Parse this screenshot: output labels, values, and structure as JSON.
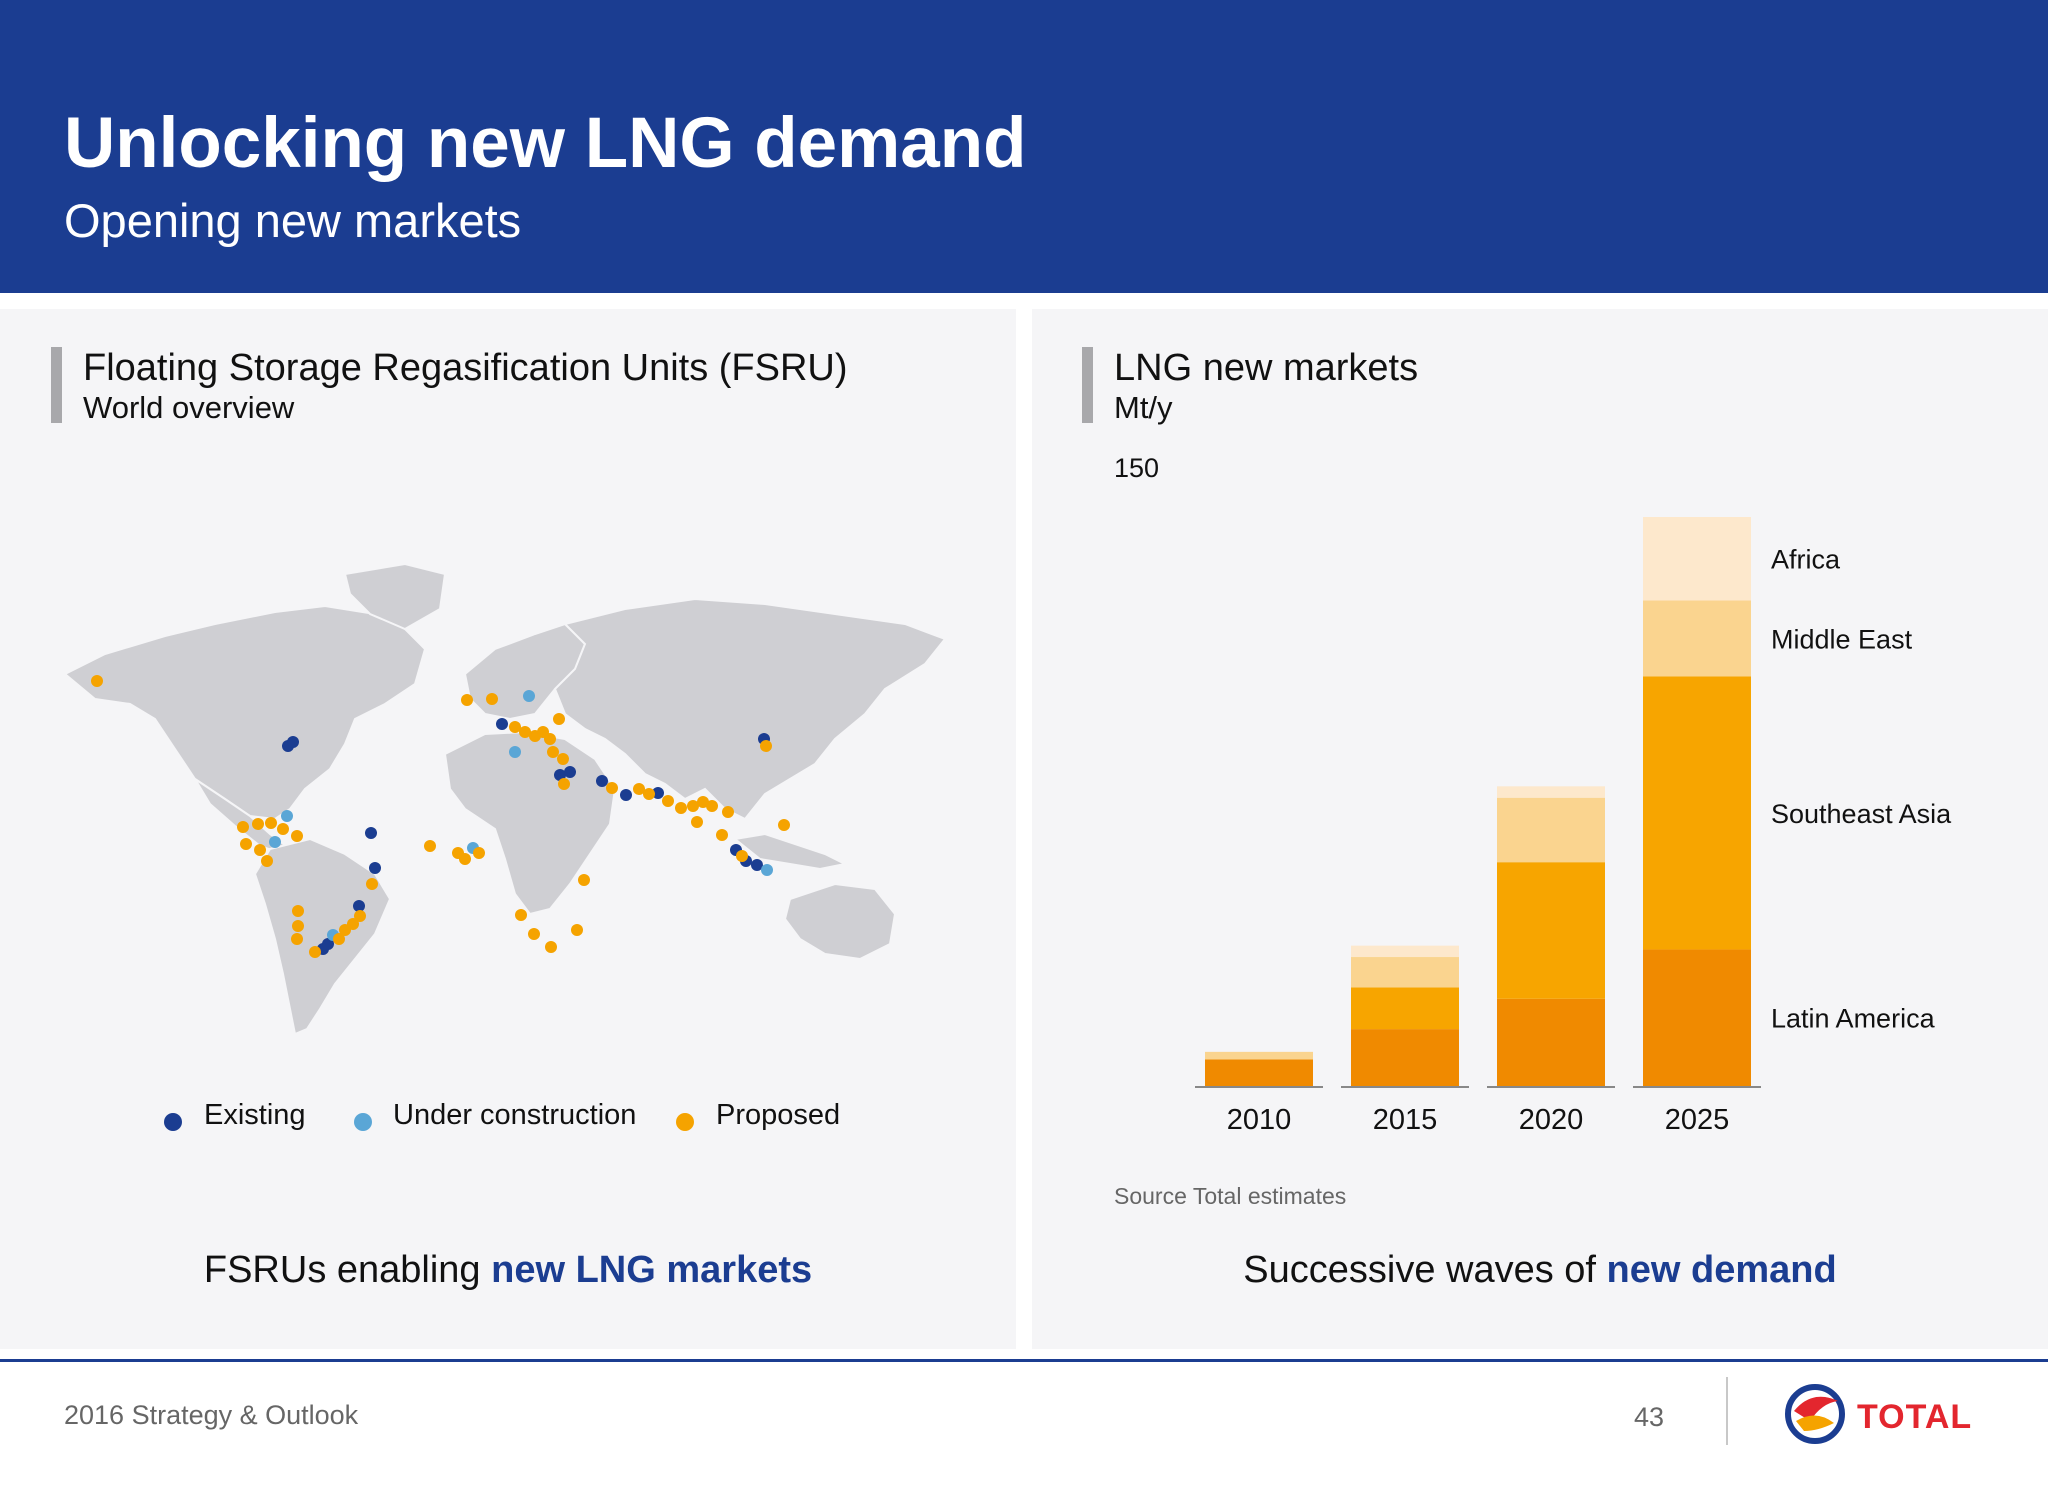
{
  "header": {
    "title": "Unlocking new LNG demand",
    "subtitle": "Opening new markets"
  },
  "left_panel": {
    "title": "Floating Storage Regasification Units (FSRU)",
    "subtitle": "World overview",
    "legend": [
      {
        "label": "Existing",
        "color": "#1b3d91"
      },
      {
        "label": "Under construction",
        "color": "#5aa6d6"
      },
      {
        "label": "Proposed",
        "color": "#f5a300"
      }
    ],
    "caption_prefix": "FSRUs enabling ",
    "caption_highlight": "new LNG markets"
  },
  "right_panel": {
    "title": "LNG new markets",
    "unit": "Mt/y",
    "source": "Source Total estimates",
    "caption_prefix": "Successive waves of ",
    "caption_highlight": "new demand"
  },
  "chart_data": {
    "type": "bar",
    "stacked": true,
    "categories": [
      "2010",
      "2015",
      "2020",
      "2025"
    ],
    "ylabel": "Mt/y",
    "yticks": [
      150
    ],
    "ylim": [
      0,
      150
    ],
    "series": [
      {
        "name": "Latin America",
        "color": "#f08a00",
        "values": [
          7,
          15,
          23,
          36
        ]
      },
      {
        "name": "Southeast Asia",
        "color": "#f7a500",
        "values": [
          0,
          11,
          36,
          72
        ]
      },
      {
        "name": "Middle East",
        "color": "#fad48f",
        "values": [
          2,
          8,
          17,
          20
        ]
      },
      {
        "name": "Africa",
        "color": "#fde8cc",
        "values": [
          0,
          3,
          3,
          22
        ]
      }
    ]
  },
  "footer": {
    "text": "2016 Strategy & Outlook",
    "page": "43",
    "logo": "TOTAL"
  }
}
